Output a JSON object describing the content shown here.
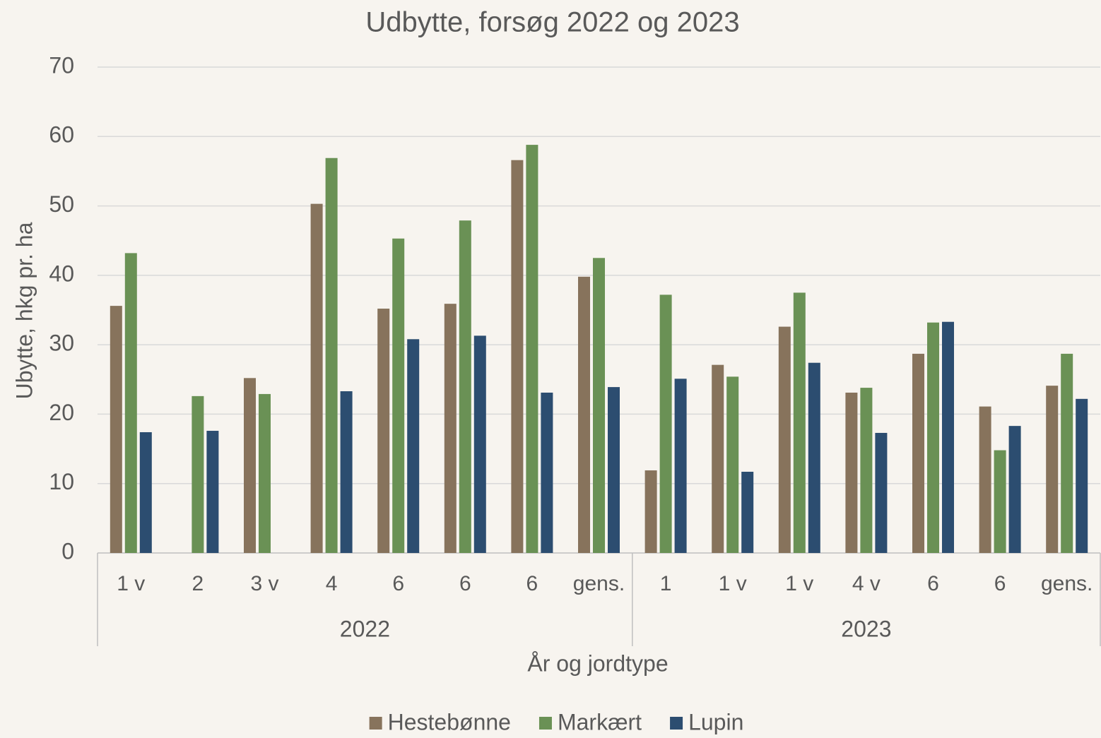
{
  "chart_data": {
    "type": "bar",
    "title": "Udbytte, forsøg 2022 og 2023",
    "y_label": "Ubytte, hkg pr. ha",
    "x_label": "År og jordtype",
    "category_groups": [
      {
        "label": "2022",
        "categories": [
          "1 v",
          "2",
          "3 v",
          "4",
          "6",
          "6",
          "6",
          "gens."
        ]
      },
      {
        "label": "2023",
        "categories": [
          "1",
          "1 v",
          "1 v",
          "4 v",
          "6",
          "6",
          "gens."
        ]
      }
    ],
    "series": [
      {
        "name": "Hestebønne",
        "color": "#87735c",
        "values": [
          35.6,
          null,
          25.2,
          50.3,
          35.2,
          35.9,
          56.6,
          39.8,
          11.9,
          27.1,
          32.6,
          23.1,
          28.7,
          21.1,
          24.1
        ]
      },
      {
        "name": "Markært",
        "color": "#6a9155",
        "values": [
          43.2,
          22.6,
          22.9,
          56.9,
          45.3,
          47.9,
          58.8,
          42.5,
          37.2,
          25.4,
          37.5,
          23.8,
          33.2,
          14.8,
          28.7
        ]
      },
      {
        "name": "Lupin",
        "color": "#2c4d70",
        "values": [
          17.4,
          17.6,
          null,
          23.3,
          30.8,
          31.3,
          23.1,
          23.9,
          25.1,
          11.7,
          27.4,
          17.3,
          33.3,
          18.3,
          22.2
        ]
      }
    ],
    "ylim": [
      0,
      70
    ],
    "yticks": [
      0,
      10,
      20,
      30,
      40,
      50,
      60,
      70
    ],
    "grid": true,
    "legend": "bottom"
  }
}
